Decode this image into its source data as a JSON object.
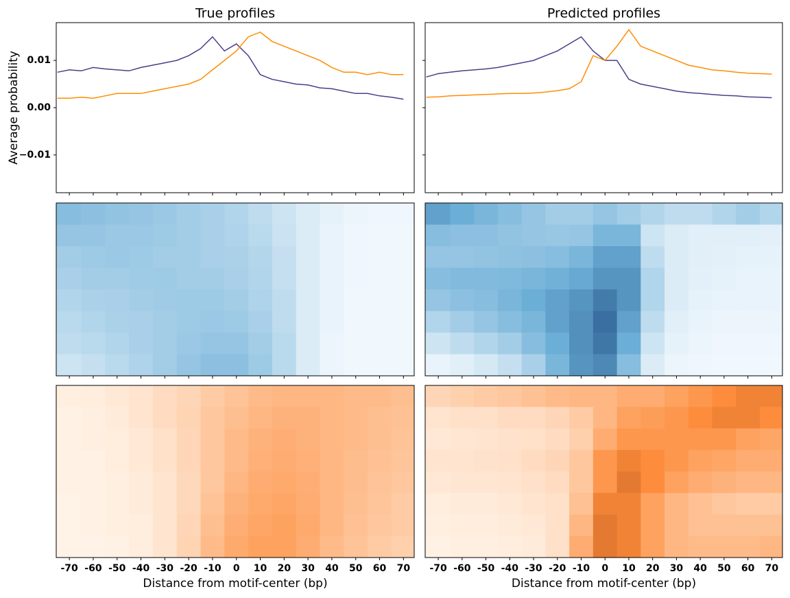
{
  "chart_data": [
    {
      "type": "line",
      "title": "True profiles",
      "ylabel": "Average probability",
      "x": [
        -75,
        -70,
        -65,
        -60,
        -55,
        -50,
        -45,
        -40,
        -35,
        -30,
        -25,
        -20,
        -15,
        -10,
        -5,
        0,
        5,
        10,
        15,
        20,
        25,
        30,
        35,
        40,
        45,
        50,
        55,
        60,
        65,
        70
      ],
      "series": [
        {
          "color": "#483d8b",
          "values": [
            0.0075,
            0.008,
            0.0078,
            0.0085,
            0.0082,
            0.008,
            0.0078,
            0.0085,
            0.009,
            0.0095,
            0.01,
            0.011,
            0.0125,
            0.015,
            0.012,
            0.0135,
            0.011,
            0.007,
            0.006,
            0.0055,
            0.005,
            0.0048,
            0.0042,
            0.004,
            0.0035,
            0.003,
            0.003,
            0.0025,
            0.0022,
            0.0018
          ]
        },
        {
          "color": "#ff8c00",
          "values": [
            0.002,
            0.002,
            0.0022,
            0.002,
            0.0025,
            0.003,
            0.003,
            0.003,
            0.0035,
            0.004,
            0.0045,
            0.005,
            0.006,
            0.008,
            0.01,
            0.012,
            0.015,
            0.016,
            0.014,
            0.013,
            0.012,
            0.011,
            0.01,
            0.0085,
            0.0075,
            0.0075,
            0.007,
            0.0075,
            0.007,
            0.007
          ]
        }
      ],
      "xlim": [
        -75.5,
        74.5
      ],
      "xticks": [
        -70,
        -60,
        -50,
        -40,
        -30,
        -20,
        -10,
        0,
        10,
        20,
        30,
        40,
        50,
        60,
        70
      ],
      "ylim": [
        -0.018,
        0.018
      ],
      "yticks": [
        {
          "value": -0.01,
          "label": "−0.01"
        },
        {
          "value": 0,
          "label": "0.00"
        },
        0.01
      ]
    },
    {
      "type": "line",
      "title": "Predicted profiles",
      "x": [
        -75,
        -70,
        -65,
        -60,
        -55,
        -50,
        -45,
        -40,
        -35,
        -30,
        -25,
        -20,
        -15,
        -10,
        -5,
        0,
        5,
        10,
        15,
        20,
        25,
        30,
        35,
        40,
        45,
        50,
        55,
        60,
        65,
        70
      ],
      "series": [
        {
          "color": "#483d8b",
          "values": [
            0.0065,
            0.0072,
            0.0075,
            0.0078,
            0.008,
            0.0082,
            0.0085,
            0.009,
            0.0095,
            0.01,
            0.011,
            0.012,
            0.0135,
            0.015,
            0.012,
            0.01,
            0.01,
            0.006,
            0.005,
            0.0045,
            0.004,
            0.0035,
            0.0032,
            0.003,
            0.0028,
            0.0026,
            0.0025,
            0.0023,
            0.0022,
            0.0021
          ]
        },
        {
          "color": "#ff8c00",
          "values": [
            0.0022,
            0.0023,
            0.0025,
            0.0026,
            0.0027,
            0.0028,
            0.0029,
            0.003,
            0.003,
            0.0031,
            0.0033,
            0.0036,
            0.004,
            0.0055,
            0.011,
            0.01,
            0.013,
            0.0165,
            0.013,
            0.012,
            0.011,
            0.01,
            0.009,
            0.0085,
            0.008,
            0.0078,
            0.0075,
            0.0073,
            0.0072,
            0.0071
          ]
        }
      ],
      "xlim": [
        -75.5,
        74.5
      ],
      "xticks": [
        -70,
        -60,
        -50,
        -40,
        -30,
        -20,
        -10,
        0,
        10,
        20,
        30,
        40,
        50,
        60,
        70
      ],
      "ylim": [
        -0.018,
        0.018
      ],
      "yticks": [
        -0.01,
        0,
        0.01
      ]
    },
    {
      "type": "heatmap",
      "cmap": "Blues",
      "x": [
        -70,
        -60,
        -50,
        -40,
        -30,
        -20,
        -10,
        0,
        10,
        20,
        30,
        40,
        50,
        60,
        70
      ],
      "xlim": [
        -75.5,
        74.5
      ],
      "xticks": [
        -70,
        -60,
        -50,
        -40,
        -30,
        -20,
        -10,
        0,
        10,
        20,
        30,
        40,
        50,
        60,
        70
      ],
      "z": [
        [
          0.4,
          0.38,
          0.36,
          0.35,
          0.33,
          0.3,
          0.28,
          0.25,
          0.2,
          0.15,
          0.1,
          0.06,
          0.04,
          0.03,
          0.03
        ],
        [
          0.35,
          0.35,
          0.33,
          0.33,
          0.32,
          0.3,
          0.28,
          0.26,
          0.22,
          0.16,
          0.1,
          0.05,
          0.03,
          0.02,
          0.02
        ],
        [
          0.3,
          0.32,
          0.33,
          0.32,
          0.3,
          0.3,
          0.28,
          0.27,
          0.24,
          0.18,
          0.1,
          0.05,
          0.03,
          0.02,
          0.02
        ],
        [
          0.28,
          0.3,
          0.3,
          0.31,
          0.32,
          0.3,
          0.3,
          0.28,
          0.25,
          0.18,
          0.1,
          0.05,
          0.03,
          0.02,
          0.02
        ],
        [
          0.25,
          0.27,
          0.28,
          0.3,
          0.31,
          0.32,
          0.32,
          0.3,
          0.26,
          0.2,
          0.1,
          0.05,
          0.02,
          0.02,
          0.02
        ],
        [
          0.22,
          0.25,
          0.27,
          0.28,
          0.3,
          0.32,
          0.33,
          0.32,
          0.28,
          0.2,
          0.1,
          0.05,
          0.02,
          0.02,
          0.02
        ],
        [
          0.2,
          0.22,
          0.25,
          0.28,
          0.3,
          0.33,
          0.35,
          0.35,
          0.3,
          0.22,
          0.1,
          0.04,
          0.02,
          0.02,
          0.02
        ],
        [
          0.15,
          0.18,
          0.22,
          0.26,
          0.3,
          0.35,
          0.38,
          0.38,
          0.32,
          0.22,
          0.1,
          0.04,
          0.02,
          0.02,
          0.02
        ]
      ]
    },
    {
      "type": "heatmap",
      "cmap": "Blues",
      "x": [
        -70,
        -60,
        -50,
        -40,
        -30,
        -20,
        -10,
        0,
        10,
        20,
        30,
        40,
        50,
        60,
        70
      ],
      "xlim": [
        -75.5,
        74.5
      ],
      "xticks": [
        -70,
        -60,
        -50,
        -40,
        -30,
        -20,
        -10,
        0,
        10,
        20,
        30,
        40,
        50,
        60,
        70
      ],
      "z": [
        [
          0.55,
          0.5,
          0.45,
          0.4,
          0.35,
          0.3,
          0.3,
          0.35,
          0.3,
          0.25,
          0.2,
          0.2,
          0.25,
          0.3,
          0.25
        ],
        [
          0.4,
          0.38,
          0.38,
          0.36,
          0.35,
          0.34,
          0.35,
          0.45,
          0.45,
          0.15,
          0.1,
          0.08,
          0.08,
          0.08,
          0.07
        ],
        [
          0.35,
          0.35,
          0.36,
          0.37,
          0.38,
          0.4,
          0.45,
          0.55,
          0.55,
          0.2,
          0.1,
          0.08,
          0.07,
          0.06,
          0.06
        ],
        [
          0.4,
          0.42,
          0.42,
          0.43,
          0.45,
          0.48,
          0.52,
          0.6,
          0.6,
          0.25,
          0.1,
          0.07,
          0.06,
          0.05,
          0.05
        ],
        [
          0.35,
          0.38,
          0.4,
          0.45,
          0.5,
          0.55,
          0.6,
          0.7,
          0.6,
          0.25,
          0.1,
          0.06,
          0.05,
          0.05,
          0.05
        ],
        [
          0.25,
          0.3,
          0.35,
          0.4,
          0.45,
          0.55,
          0.62,
          0.75,
          0.55,
          0.2,
          0.08,
          0.05,
          0.04,
          0.04,
          0.04
        ],
        [
          0.15,
          0.2,
          0.25,
          0.3,
          0.4,
          0.5,
          0.62,
          0.72,
          0.5,
          0.15,
          0.06,
          0.04,
          0.03,
          0.03,
          0.03
        ],
        [
          0.05,
          0.08,
          0.12,
          0.18,
          0.28,
          0.45,
          0.6,
          0.65,
          0.4,
          0.1,
          0.04,
          0.03,
          0.02,
          0.02,
          0.02
        ]
      ]
    },
    {
      "type": "heatmap",
      "cmap": "Oranges",
      "xlabel": "Distance from motif-center (bp)",
      "x": [
        -70,
        -60,
        -50,
        -40,
        -30,
        -20,
        -10,
        0,
        10,
        20,
        30,
        40,
        50,
        60,
        70
      ],
      "xlim": [
        -75.5,
        74.5
      ],
      "xticks": [
        -70,
        -60,
        -50,
        -40,
        -30,
        -20,
        -10,
        0,
        10,
        20,
        30,
        40,
        50,
        60,
        70
      ],
      "z": [
        [
          0.03,
          0.04,
          0.06,
          0.08,
          0.12,
          0.15,
          0.2,
          0.24,
          0.28,
          0.3,
          0.3,
          0.3,
          0.28,
          0.28,
          0.26
        ],
        [
          0.02,
          0.03,
          0.05,
          0.08,
          0.12,
          0.16,
          0.22,
          0.26,
          0.3,
          0.32,
          0.32,
          0.3,
          0.28,
          0.26,
          0.25
        ],
        [
          0.02,
          0.03,
          0.04,
          0.06,
          0.1,
          0.15,
          0.22,
          0.28,
          0.32,
          0.34,
          0.32,
          0.3,
          0.28,
          0.26,
          0.24
        ],
        [
          0.02,
          0.02,
          0.04,
          0.06,
          0.1,
          0.15,
          0.22,
          0.28,
          0.33,
          0.35,
          0.33,
          0.3,
          0.27,
          0.25,
          0.23
        ],
        [
          0.02,
          0.02,
          0.03,
          0.05,
          0.08,
          0.14,
          0.22,
          0.3,
          0.35,
          0.36,
          0.34,
          0.3,
          0.27,
          0.24,
          0.22
        ],
        [
          0.01,
          0.02,
          0.03,
          0.05,
          0.08,
          0.14,
          0.24,
          0.32,
          0.36,
          0.38,
          0.35,
          0.3,
          0.26,
          0.23,
          0.2
        ],
        [
          0.01,
          0.02,
          0.03,
          0.04,
          0.08,
          0.15,
          0.26,
          0.34,
          0.38,
          0.4,
          0.36,
          0.3,
          0.25,
          0.22,
          0.2
        ],
        [
          0.01,
          0.01,
          0.02,
          0.04,
          0.08,
          0.16,
          0.28,
          0.36,
          0.4,
          0.4,
          0.35,
          0.28,
          0.24,
          0.2,
          0.18
        ]
      ]
    },
    {
      "type": "heatmap",
      "cmap": "Oranges",
      "xlabel": "Distance from motif-center (bp)",
      "x": [
        -70,
        -60,
        -50,
        -40,
        -30,
        -20,
        -10,
        0,
        10,
        20,
        30,
        40,
        50,
        60,
        70
      ],
      "xlim": [
        -75.5,
        74.5
      ],
      "xticks": [
        -70,
        -60,
        -50,
        -40,
        -30,
        -20,
        -10,
        0,
        10,
        20,
        30,
        40,
        50,
        60,
        70
      ],
      "z": [
        [
          0.15,
          0.18,
          0.2,
          0.22,
          0.25,
          0.28,
          0.3,
          0.3,
          0.35,
          0.35,
          0.4,
          0.45,
          0.5,
          0.55,
          0.55
        ],
        [
          0.08,
          0.1,
          0.1,
          0.12,
          0.12,
          0.15,
          0.2,
          0.3,
          0.4,
          0.42,
          0.45,
          0.5,
          0.55,
          0.55,
          0.5
        ],
        [
          0.06,
          0.07,
          0.08,
          0.09,
          0.1,
          0.12,
          0.18,
          0.35,
          0.45,
          0.45,
          0.45,
          0.45,
          0.45,
          0.4,
          0.38
        ],
        [
          0.08,
          0.08,
          0.09,
          0.1,
          0.12,
          0.15,
          0.22,
          0.45,
          0.55,
          0.5,
          0.45,
          0.4,
          0.38,
          0.35,
          0.35
        ],
        [
          0.06,
          0.07,
          0.07,
          0.08,
          0.1,
          0.12,
          0.22,
          0.45,
          0.6,
          0.5,
          0.4,
          0.35,
          0.32,
          0.3,
          0.3
        ],
        [
          0.04,
          0.05,
          0.05,
          0.06,
          0.08,
          0.1,
          0.25,
          0.55,
          0.55,
          0.4,
          0.3,
          0.25,
          0.22,
          0.2,
          0.2
        ],
        [
          0.03,
          0.04,
          0.04,
          0.05,
          0.06,
          0.1,
          0.3,
          0.6,
          0.55,
          0.4,
          0.3,
          0.25,
          0.25,
          0.25,
          0.25
        ],
        [
          0.02,
          0.03,
          0.03,
          0.04,
          0.05,
          0.1,
          0.35,
          0.6,
          0.55,
          0.4,
          0.3,
          0.28,
          0.28,
          0.28,
          0.3
        ]
      ]
    }
  ]
}
